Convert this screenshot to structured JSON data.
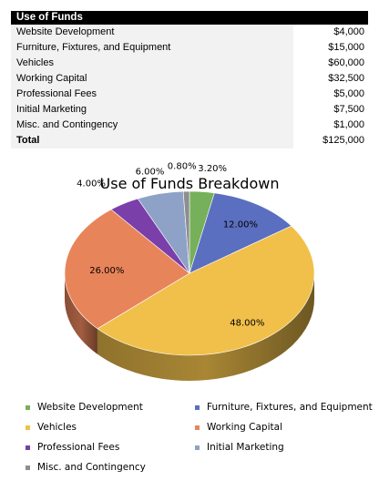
{
  "table": {
    "title": "Use of Funds",
    "rows": [
      {
        "label": "Website Development",
        "value": "$4,000"
      },
      {
        "label": "Furniture, Fixtures, and Equipment",
        "value": "$15,000"
      },
      {
        "label": "Vehicles",
        "value": "$60,000"
      },
      {
        "label": "Working Capital",
        "value": "$32,500"
      },
      {
        "label": "Professional Fees",
        "value": "$5,000"
      },
      {
        "label": "Initial Marketing",
        "value": "$7,500"
      },
      {
        "label": "Misc. and Contingency",
        "value": "$1,000"
      }
    ],
    "total": {
      "label": "Total",
      "value": "$125,000"
    }
  },
  "chart_data": {
    "type": "pie",
    "title": "Use of Funds Breakdown",
    "categories": [
      "Website Development",
      "Furniture, Fixtures, and Equipment",
      "Vehicles",
      "Working Capital",
      "Professional Fees",
      "Initial Marketing",
      "Misc. and Contingency"
    ],
    "values": [
      3.2,
      12.0,
      48.0,
      26.0,
      4.0,
      6.0,
      0.8
    ],
    "data_labels": [
      "3.20%",
      "12.00%",
      "48.00%",
      "26.00%",
      "4.00%",
      "6.00%",
      "0.80%"
    ],
    "colors": [
      "#77b05a",
      "#5a6fbf",
      "#f0c04a",
      "#e8845a",
      "#7a3fa8",
      "#8ea2c8",
      "#8e8e8e"
    ],
    "legend_position": "bottom"
  }
}
